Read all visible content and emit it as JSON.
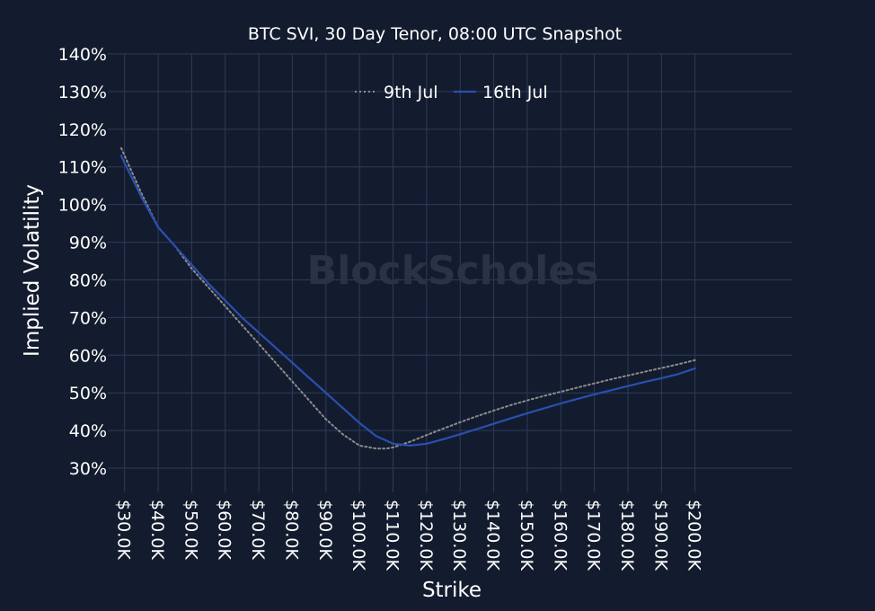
{
  "chart_data": {
    "type": "line",
    "title": "BTC SVI, 30 Day Tenor, 08:00 UTC Snapshot",
    "xlabel": "Strike",
    "ylabel": "Implied Volatility",
    "watermark": "BlockScholes",
    "x_ticks": [
      "$30.0K",
      "$40.0K",
      "$50.0K",
      "$60.0K",
      "$70.0K",
      "$80.0K",
      "$90.0K",
      "$100.0K",
      "$110.0K",
      "$120.0K",
      "$130.0K",
      "$140.0K",
      "$150.0K",
      "$160.0K",
      "$170.0K",
      "$180.0K",
      "$190.0K",
      "$200.0K"
    ],
    "y_ticks": [
      "30%",
      "40%",
      "50%",
      "60%",
      "70%",
      "80%",
      "90%",
      "100%",
      "110%",
      "120%",
      "130%",
      "140%"
    ],
    "xlim": [
      25000,
      229000
    ],
    "ylim": [
      25,
      140
    ],
    "grid": true,
    "legend_position": "top-center",
    "colors": {
      "background": "#131c2e",
      "grid": "#2d3a5c",
      "series_9jul": "#8c8c8c",
      "series_16jul": "#2a4fb0",
      "text": "#ffffff"
    },
    "series": [
      {
        "name": "9th Jul",
        "style": "dotted",
        "color": "#8c8c8c",
        "x": [
          29000,
          30000,
          35000,
          40000,
          45000,
          50000,
          55000,
          60000,
          65000,
          70000,
          75000,
          80000,
          85000,
          90000,
          95000,
          100000,
          105000,
          108000,
          110000,
          115000,
          120000,
          125000,
          130000,
          135000,
          140000,
          145000,
          150000,
          155000,
          160000,
          165000,
          170000,
          175000,
          180000,
          185000,
          190000,
          195000,
          200000
        ],
        "y": [
          115,
          113,
          103,
          94,
          89,
          83,
          78,
          73,
          68,
          63,
          58,
          53,
          48,
          43,
          39,
          36,
          35.2,
          35.2,
          35.5,
          37,
          38.8,
          40.5,
          42.2,
          43.8,
          45.3,
          46.7,
          48,
          49.2,
          50.3,
          51.4,
          52.5,
          53.6,
          54.6,
          55.6,
          56.6,
          57.6,
          58.7
        ]
      },
      {
        "name": "16th Jul",
        "style": "solid",
        "color": "#2a4fb0",
        "x": [
          29000,
          30000,
          35000,
          40000,
          45000,
          50000,
          55000,
          60000,
          65000,
          70000,
          75000,
          80000,
          85000,
          90000,
          95000,
          100000,
          105000,
          110000,
          115000,
          120000,
          125000,
          130000,
          135000,
          140000,
          145000,
          150000,
          155000,
          160000,
          165000,
          170000,
          175000,
          180000,
          185000,
          190000,
          195000,
          200000
        ],
        "y": [
          113,
          111,
          102,
          94,
          89,
          84,
          79,
          74.5,
          70,
          66,
          62,
          58,
          54,
          50,
          46,
          42,
          38.5,
          36.5,
          36,
          36.5,
          37.7,
          39,
          40.4,
          41.8,
          43.2,
          44.6,
          45.9,
          47.2,
          48.4,
          49.6,
          50.7,
          51.8,
          52.9,
          53.9,
          55,
          56.5
        ]
      }
    ]
  }
}
